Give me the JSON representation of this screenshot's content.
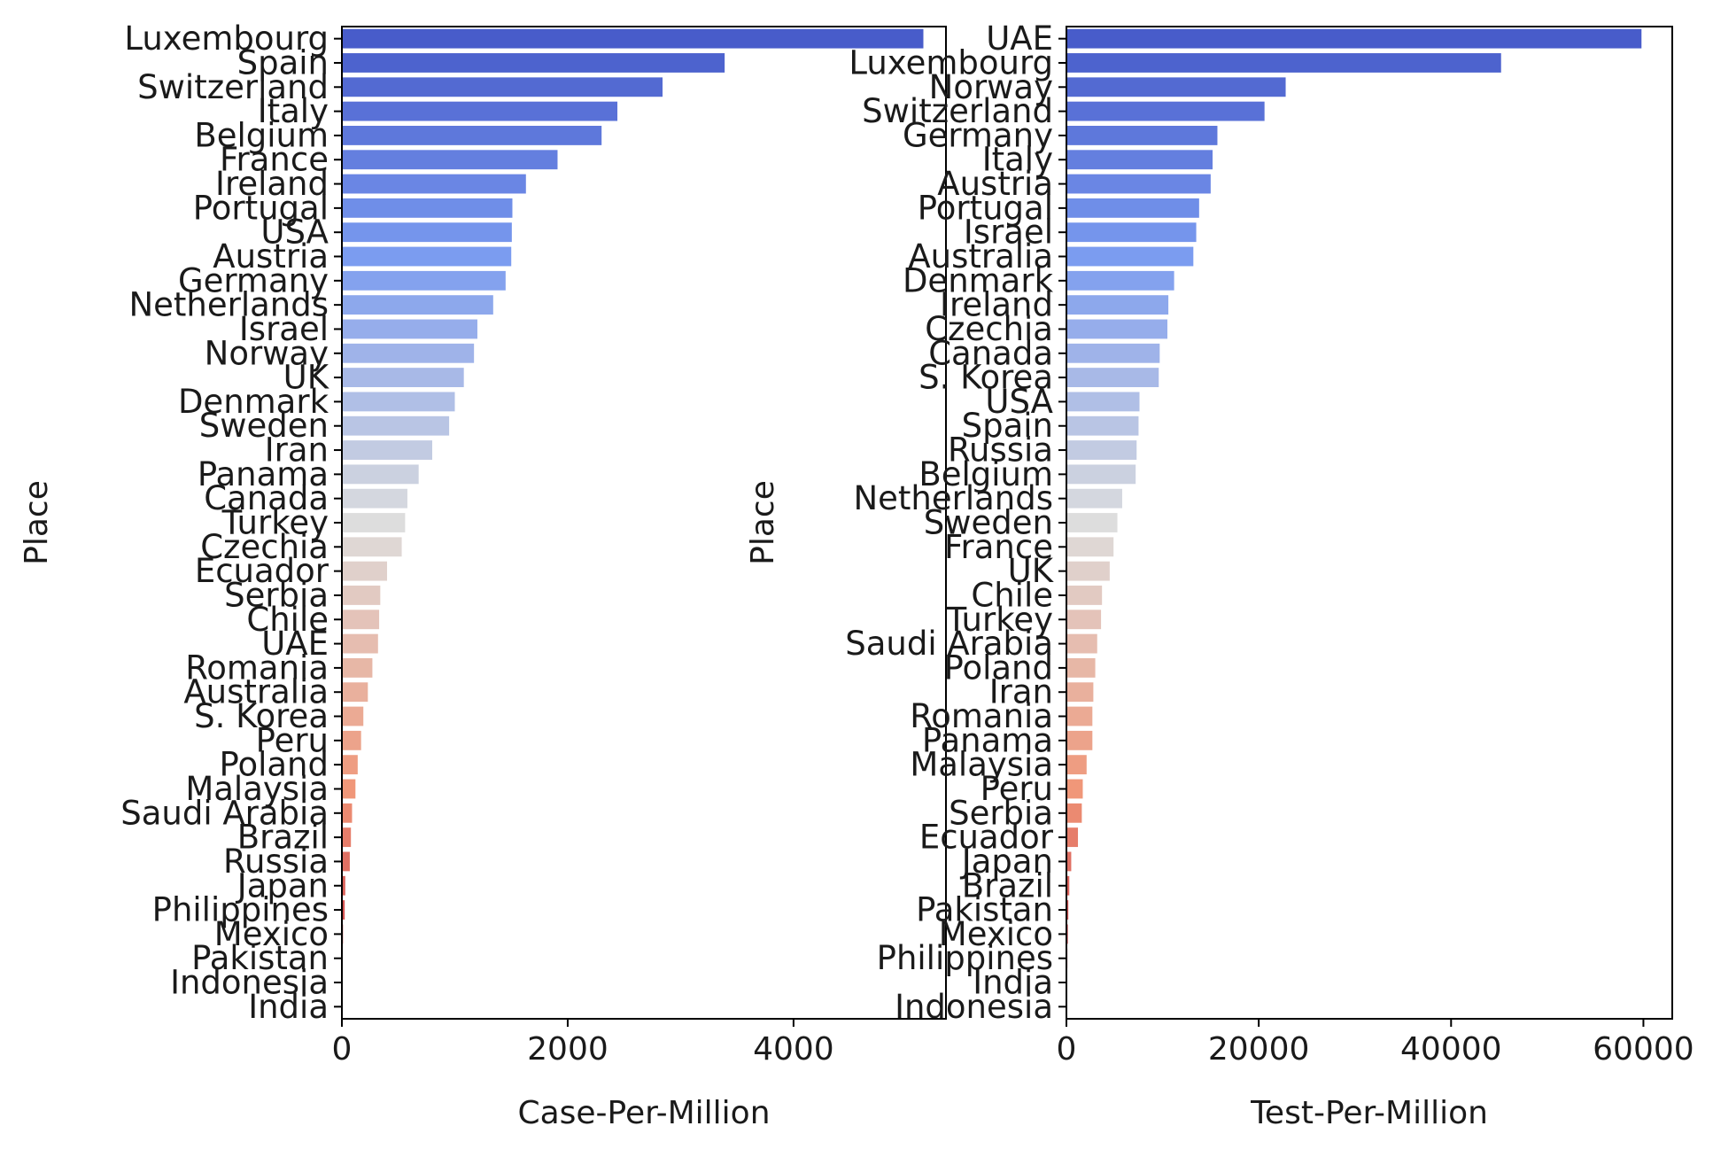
{
  "chart_data": [
    {
      "type": "bar",
      "orientation": "horizontal",
      "xlabel": "Case-Per-Million",
      "ylabel": "Place",
      "xlim": [
        0,
        5350
      ],
      "xticks": [
        0,
        2000,
        4000
      ],
      "xtick_labels": [
        "0",
        "2000",
        "4000"
      ],
      "grid": false,
      "colormap": "coolwarm",
      "categories": [
        "Luxembourg",
        "Spain",
        "Switzerland",
        "Italy",
        "Belgium",
        "France",
        "Ireland",
        "Portugal",
        "USA",
        "Austria",
        "Germany",
        "Netherlands",
        "Israel",
        "Norway",
        "UK",
        "Denmark",
        "Sweden",
        "Iran",
        "Panama",
        "Canada",
        "Turkey",
        "Czechia",
        "Ecuador",
        "Serbia",
        "Chile",
        "UAE",
        "Romania",
        "Australia",
        "S. Korea",
        "Peru",
        "Poland",
        "Malaysia",
        "Saudi Arabia",
        "Brazil",
        "Russia",
        "Japan",
        "Philippines",
        "Mexico",
        "Pakistan",
        "Indonesia",
        "India"
      ],
      "values": [
        5150,
        3390,
        2840,
        2440,
        2300,
        1910,
        1630,
        1510,
        1505,
        1500,
        1450,
        1340,
        1200,
        1170,
        1080,
        1000,
        950,
        800,
        680,
        580,
        560,
        530,
        400,
        340,
        330,
        320,
        270,
        230,
        190,
        170,
        140,
        120,
        90,
        80,
        70,
        30,
        25,
        10,
        5,
        3,
        2
      ]
    },
    {
      "type": "bar",
      "orientation": "horizontal",
      "xlabel": "Test-Per-Million",
      "ylabel": "Place",
      "xlim": [
        0,
        63000
      ],
      "xticks": [
        0,
        20000,
        40000,
        60000
      ],
      "xtick_labels": [
        "0",
        "20000",
        "40000",
        "60000"
      ],
      "grid": false,
      "colormap": "coolwarm",
      "categories": [
        "UAE",
        "Luxembourg",
        "Norway",
        "Switzerland",
        "Germany",
        "Italy",
        "Austria",
        "Portugal",
        "Israel",
        "Australia",
        "Denmark",
        "Ireland",
        "Czechia",
        "Canada",
        "S. Korea",
        "USA",
        "Spain",
        "Russia",
        "Belgium",
        "Netherlands",
        "Sweden",
        "France",
        "UK",
        "Chile",
        "Turkey",
        "Saudi Arabia",
        "Poland",
        "Iran",
        "Romania",
        "Panama",
        "Malaysia",
        "Peru",
        "Serbia",
        "Ecuador",
        "Japan",
        "Brazil",
        "Pakistan",
        "Mexico",
        "Philippines",
        "India",
        "Indonesia"
      ],
      "values": [
        59800,
        45200,
        22800,
        20600,
        15700,
        15200,
        15000,
        13800,
        13500,
        13200,
        11200,
        10600,
        10500,
        9700,
        9600,
        7600,
        7500,
        7300,
        7200,
        5800,
        5300,
        4900,
        4500,
        3700,
        3600,
        3200,
        3000,
        2800,
        2700,
        2700,
        2100,
        1700,
        1600,
        1200,
        500,
        300,
        200,
        150,
        100,
        50,
        30
      ]
    }
  ]
}
